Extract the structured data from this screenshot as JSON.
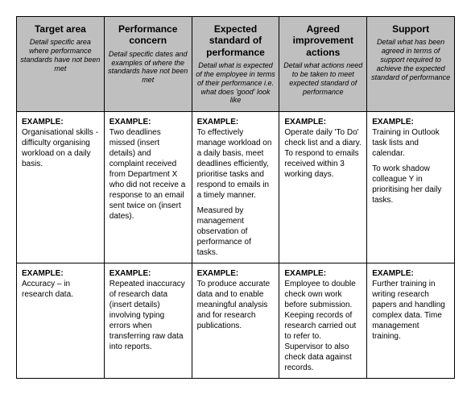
{
  "table": {
    "columns": [
      {
        "title": "Target area",
        "desc": "Detail specific area where performance standards have not been met"
      },
      {
        "title": "Performance concern",
        "desc": "Detail specific dates and examples of where the standards have not been met"
      },
      {
        "title": "Expected standard of performance",
        "desc": "Detail what is expected of the employee in terms of their performance i.e. what does 'good' look like"
      },
      {
        "title": "Agreed improvement actions",
        "desc": "Detail what actions need to be taken to meet expected standard of performance"
      },
      {
        "title": "Support",
        "desc": "Detail what has been agreed in terms of support required to achieve the expected standard of performance"
      }
    ],
    "rows": [
      {
        "label": "EXAMPLE:",
        "cells": [
          [
            "Organisational skills - difficulty organising workload on a daily basis."
          ],
          [
            "Two deadlines missed (insert details) and complaint received from Department X who did not receive a response to an email sent twice on (insert dates)."
          ],
          [
            "To effectively manage workload on a daily basis, meet deadlines efficiently, prioritise tasks and respond to emails in a timely manner.",
            "Measured by management observation of performance of tasks."
          ],
          [
            "Operate daily 'To Do' check list and a diary. To respond to emails received within 3 working days."
          ],
          [
            "Training in Outlook task lists and calendar.",
            "To work shadow colleague Y in prioritising her daily tasks."
          ]
        ]
      },
      {
        "label": "EXAMPLE:",
        "cells": [
          [
            "Accuracy – in research data."
          ],
          [
            "Repeated inaccuracy of research data (insert details) involving typing errors when transferring raw data into reports."
          ],
          [
            "To produce accurate data and to enable meaningful analysis and for research publications."
          ],
          [
            "Employee to double check own work before submission. Keeping records of research carried out to refer to. Supervisor to also check data against records."
          ],
          [
            "Further training in writing research papers and handling complex data. Time management training."
          ]
        ]
      }
    ]
  }
}
